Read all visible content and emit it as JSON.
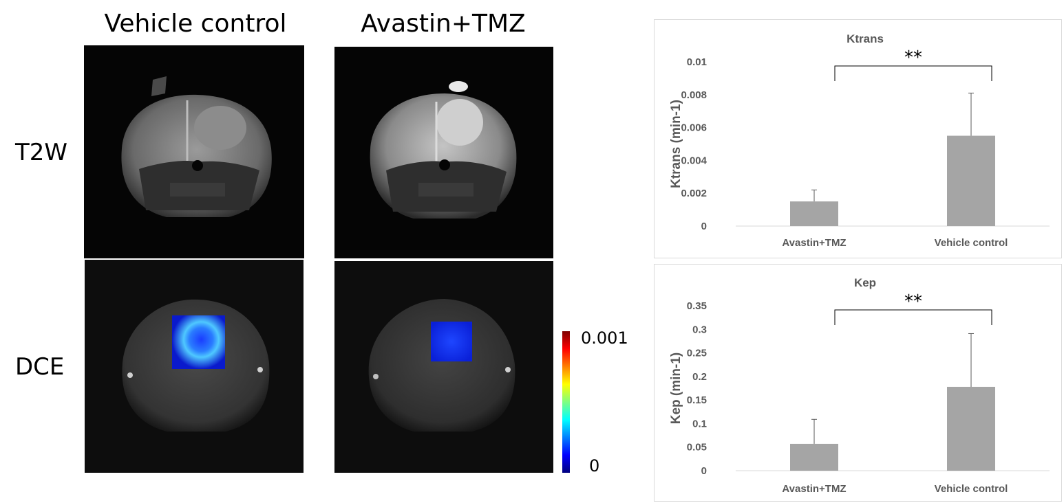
{
  "figure": {
    "column_titles": [
      "Vehicle control",
      "Avastin+TMZ"
    ],
    "row_labels": [
      "T2W",
      "DCE"
    ],
    "colorbar": {
      "max_label": "0.001",
      "min_label": "0",
      "colors": [
        "#00007f",
        "#0000ff",
        "#0080ff",
        "#00ffff",
        "#80ff80",
        "#ffff00",
        "#ff8000",
        "#ff0000",
        "#7f0000"
      ]
    }
  },
  "chart_data": [
    {
      "type": "bar",
      "title": "Ktrans",
      "ylabel": "Ktrans (min-1)",
      "categories": [
        "Avastin+TMZ",
        "Vehicle control"
      ],
      "values": [
        0.0015,
        0.0055
      ],
      "error": [
        0.0007,
        0.0026
      ],
      "ylim": [
        0,
        0.01
      ],
      "yticks": [
        "0",
        "0.002",
        "0.004",
        "0.006",
        "0.008",
        "0.01"
      ],
      "ytick_values": [
        0,
        0.002,
        0.004,
        0.006,
        0.008,
        0.01
      ],
      "significance": "**",
      "bar_color": "#a5a5a5",
      "grid": false
    },
    {
      "type": "bar",
      "title": "Kep",
      "ylabel": "Kep (min-1)",
      "categories": [
        "Avastin+TMZ",
        "Vehicle control"
      ],
      "values": [
        0.057,
        0.178
      ],
      "error": [
        0.052,
        0.113
      ],
      "ylim": [
        0,
        0.35
      ],
      "yticks": [
        "0",
        "0.05",
        "0.1",
        "0.15",
        "0.2",
        "0.25",
        "0.3",
        "0.35"
      ],
      "ytick_values": [
        0,
        0.05,
        0.1,
        0.15,
        0.2,
        0.25,
        0.3,
        0.35
      ],
      "significance": "**",
      "bar_color": "#a5a5a5",
      "grid": false
    }
  ]
}
